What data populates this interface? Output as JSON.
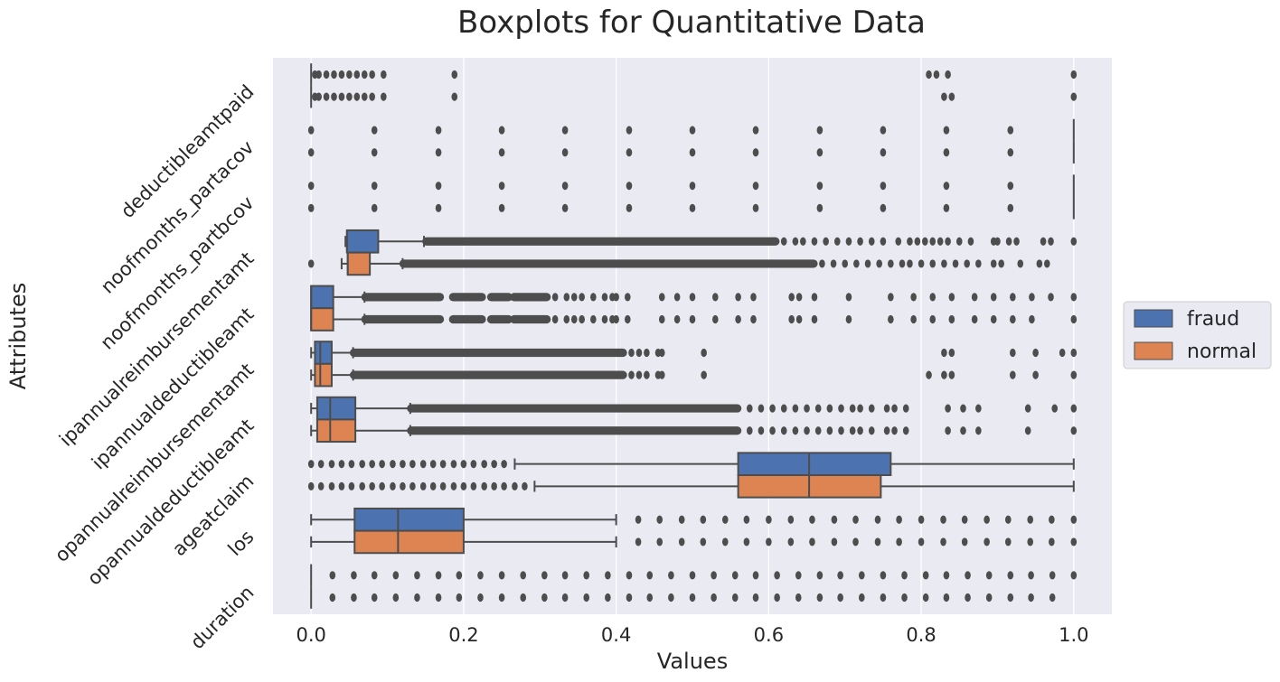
{
  "chart_data": {
    "type": "boxplot",
    "title": "Boxplots for Quantitative Data",
    "xlabel": "Values",
    "ylabel": "Attributes",
    "xlim": [
      -0.05,
      1.05
    ],
    "xticks": [
      0.0,
      0.2,
      0.4,
      0.6,
      0.8,
      1.0
    ],
    "xtick_labels": [
      "0.0",
      "0.2",
      "0.4",
      "0.6",
      "0.8",
      "1.0"
    ],
    "grid": true,
    "legend": {
      "placement": "right",
      "entries": [
        "fraud",
        "normal"
      ]
    },
    "colors": {
      "fraud": "#4c72b0",
      "normal": "#dd8452",
      "background": "#eaeaf2",
      "line": "#4d4d4d",
      "grid": "#ffffff"
    },
    "categories": [
      "deductibleamtpaid",
      "noofmonths_partacov",
      "noofmonths_partbcov",
      "ipannualreimbursementamt",
      "ipannualdeductibleamt",
      "opannualreimbursementamt",
      "opannualdeductibleamt",
      "ageatclaim",
      "los",
      "duration"
    ],
    "series": [
      {
        "name": "fraud",
        "boxes": [
          {
            "q1": 0.0,
            "median": 0.0,
            "q3": 0.0,
            "wlo": 0.0,
            "whi": 0.0,
            "outliers": [
              0.005,
              0.01,
              0.02,
              0.03,
              0.04,
              0.05,
              0.06,
              0.07,
              0.08,
              0.095,
              0.188,
              0.81,
              0.82,
              0.835,
              1.0
            ]
          },
          {
            "q1": 1.0,
            "median": 1.0,
            "q3": 1.0,
            "wlo": 1.0,
            "whi": 1.0,
            "outliers": [
              0.0,
              0.083,
              0.167,
              0.25,
              0.333,
              0.417,
              0.5,
              0.583,
              0.667,
              0.75,
              0.833,
              0.917
            ]
          },
          {
            "q1": 1.0,
            "median": 1.0,
            "q3": 1.0,
            "wlo": 1.0,
            "whi": 1.0,
            "outliers": [
              0.0,
              0.083,
              0.167,
              0.25,
              0.333,
              0.417,
              0.5,
              0.583,
              0.667,
              0.75,
              0.833,
              0.917
            ]
          },
          {
            "q1": 0.047,
            "median": 0.047,
            "q3": 0.088,
            "wlo": 0.045,
            "whi": 0.148,
            "outliers": [
              0.96,
              0.97,
              1.0
            ],
            "dense": [
              [
                0.15,
                0.61
              ]
            ],
            "sparse": [
              0.62,
              0.635,
              0.645,
              0.66,
              0.675,
              0.69,
              0.705,
              0.72,
              0.735,
              0.75,
              0.77,
              0.785,
              0.795,
              0.805,
              0.815,
              0.825,
              0.835,
              0.85,
              0.865,
              0.895,
              0.9,
              0.915,
              0.925
            ]
          },
          {
            "q1": 0.0,
            "median": 0.0,
            "q3": 0.029,
            "wlo": 0.0,
            "whi": 0.07,
            "outliers": [
              0.58,
              0.63,
              0.64,
              0.66,
              0.705,
              0.76,
              0.79,
              0.815,
              0.84,
              0.87,
              0.895,
              0.92,
              0.945,
              0.97,
              1.0
            ],
            "dense": [
              [
                0.07,
                0.17
              ],
              [
                0.185,
                0.225
              ],
              [
                0.235,
                0.26
              ],
              [
                0.265,
                0.31
              ]
            ],
            "sparse": [
              0.32,
              0.335,
              0.345,
              0.355,
              0.37,
              0.385,
              0.395,
              0.4,
              0.415,
              0.46,
              0.48,
              0.5,
              0.53,
              0.56
            ]
          },
          {
            "q1": 0.005,
            "median": 0.012,
            "q3": 0.027,
            "wlo": 0.0,
            "whi": 0.055,
            "outliers": [
              0.515,
              0.83,
              0.84,
              0.92,
              0.95,
              0.985,
              1.0
            ],
            "dense": [
              [
                0.055,
                0.41
              ]
            ],
            "sparse": [
              0.42,
              0.43,
              0.44,
              0.455,
              0.46
            ]
          },
          {
            "q1": 0.008,
            "median": 0.025,
            "q3": 0.058,
            "wlo": 0.0,
            "whi": 0.13,
            "outliers": [
              0.835,
              0.855,
              0.875,
              0.94,
              0.975,
              1.0
            ],
            "dense": [
              [
                0.13,
                0.56
              ]
            ],
            "sparse": [
              0.575,
              0.59,
              0.605,
              0.62,
              0.635,
              0.65,
              0.665,
              0.68,
              0.695,
              0.71,
              0.72,
              0.735,
              0.755,
              0.765,
              0.78
            ]
          },
          {
            "q1": 0.56,
            "median": 0.653,
            "q3": 0.76,
            "wlo": 0.267,
            "whi": 1.0,
            "outliers": [
              0.0,
              0.013,
              0.027,
              0.04,
              0.053,
              0.067,
              0.08,
              0.093,
              0.107,
              0.12,
              0.133,
              0.147,
              0.16,
              0.173,
              0.187,
              0.2,
              0.213,
              0.227,
              0.24,
              0.253
            ]
          },
          {
            "q1": 0.057,
            "median": 0.114,
            "q3": 0.2,
            "wlo": 0.0,
            "whi": 0.4,
            "outliers": [
              0.429,
              0.457,
              0.486,
              0.514,
              0.543,
              0.571,
              0.6,
              0.629,
              0.657,
              0.686,
              0.714,
              0.743,
              0.771,
              0.8,
              0.829,
              0.857,
              0.886,
              0.914,
              0.943,
              0.971,
              1.0
            ]
          },
          {
            "q1": 0.0,
            "median": 0.0,
            "q3": 0.0,
            "wlo": 0.0,
            "whi": 0.0,
            "outliers": [
              0.028,
              0.056,
              0.083,
              0.111,
              0.139,
              0.167,
              0.194,
              0.222,
              0.25,
              0.278,
              0.306,
              0.333,
              0.361,
              0.389,
              0.417,
              0.444,
              0.472,
              0.5,
              0.528,
              0.556,
              0.583,
              0.611,
              0.639,
              0.667,
              0.694,
              0.722,
              0.75,
              0.778,
              0.806,
              0.833,
              0.861,
              0.889,
              0.917,
              0.944,
              0.972,
              1.0
            ]
          }
        ]
      },
      {
        "name": "normal",
        "boxes": [
          {
            "q1": 0.0,
            "median": 0.0,
            "q3": 0.0,
            "wlo": 0.0,
            "whi": 0.0,
            "outliers": [
              0.005,
              0.01,
              0.02,
              0.03,
              0.04,
              0.05,
              0.06,
              0.07,
              0.08,
              0.095,
              0.188,
              0.83,
              0.84,
              1.0
            ]
          },
          {
            "q1": 1.0,
            "median": 1.0,
            "q3": 1.0,
            "wlo": 1.0,
            "whi": 1.0,
            "outliers": [
              0.0,
              0.083,
              0.167,
              0.25,
              0.333,
              0.417,
              0.5,
              0.583,
              0.667,
              0.75,
              0.833,
              0.917
            ]
          },
          {
            "q1": 1.0,
            "median": 1.0,
            "q3": 1.0,
            "wlo": 1.0,
            "whi": 1.0,
            "outliers": [
              0.0,
              0.083,
              0.167,
              0.25,
              0.333,
              0.417,
              0.5,
              0.583,
              0.667,
              0.75,
              0.833,
              0.917
            ]
          },
          {
            "q1": 0.048,
            "median": 0.048,
            "q3": 0.077,
            "wlo": 0.04,
            "whi": 0.12,
            "outliers": [
              0.0,
              0.955,
              0.965
            ],
            "dense": [
              [
                0.12,
                0.66
              ]
            ],
            "sparse": [
              0.67,
              0.685,
              0.7,
              0.715,
              0.73,
              0.745,
              0.76,
              0.775,
              0.785,
              0.8,
              0.815,
              0.83,
              0.845,
              0.86,
              0.875,
              0.895,
              0.905,
              0.93
            ]
          },
          {
            "q1": 0.0,
            "median": 0.0,
            "q3": 0.029,
            "wlo": 0.0,
            "whi": 0.07,
            "outliers": [
              0.58,
              0.63,
              0.64,
              0.66,
              0.705,
              0.76,
              0.79,
              0.815,
              0.84,
              0.87,
              0.895,
              0.92,
              0.945,
              1.0
            ],
            "dense": [
              [
                0.07,
                0.17
              ],
              [
                0.185,
                0.225
              ],
              [
                0.235,
                0.26
              ],
              [
                0.265,
                0.31
              ]
            ],
            "sparse": [
              0.32,
              0.335,
              0.345,
              0.355,
              0.37,
              0.385,
              0.395,
              0.4,
              0.415,
              0.46,
              0.48,
              0.5,
              0.53,
              0.56
            ]
          },
          {
            "q1": 0.005,
            "median": 0.012,
            "q3": 0.027,
            "wlo": 0.0,
            "whi": 0.055,
            "outliers": [
              0.515,
              0.81,
              0.83,
              0.84,
              0.92,
              0.95,
              1.0
            ],
            "dense": [
              [
                0.055,
                0.41
              ]
            ],
            "sparse": [
              0.42,
              0.43,
              0.44,
              0.455,
              0.46
            ]
          },
          {
            "q1": 0.008,
            "median": 0.025,
            "q3": 0.058,
            "wlo": 0.0,
            "whi": 0.13,
            "outliers": [
              0.835,
              0.855,
              0.875,
              0.94,
              1.0
            ],
            "dense": [
              [
                0.13,
                0.56
              ]
            ],
            "sparse": [
              0.575,
              0.59,
              0.605,
              0.62,
              0.635,
              0.65,
              0.665,
              0.68,
              0.695,
              0.71,
              0.72,
              0.735,
              0.755,
              0.765,
              0.78
            ]
          },
          {
            "q1": 0.56,
            "median": 0.653,
            "q3": 0.747,
            "wlo": 0.293,
            "whi": 1.0,
            "outliers": [
              0.0,
              0.013,
              0.027,
              0.04,
              0.053,
              0.067,
              0.08,
              0.093,
              0.107,
              0.12,
              0.133,
              0.147,
              0.16,
              0.173,
              0.187,
              0.2,
              0.213,
              0.227,
              0.24,
              0.253,
              0.267,
              0.28
            ]
          },
          {
            "q1": 0.057,
            "median": 0.114,
            "q3": 0.2,
            "wlo": 0.0,
            "whi": 0.4,
            "outliers": [
              0.429,
              0.457,
              0.486,
              0.514,
              0.543,
              0.571,
              0.6,
              0.629,
              0.657,
              0.686,
              0.714,
              0.743,
              0.771,
              0.8,
              0.829,
              0.857,
              0.886,
              0.914,
              0.943,
              0.971,
              1.0
            ]
          },
          {
            "q1": 0.0,
            "median": 0.0,
            "q3": 0.0,
            "wlo": 0.0,
            "whi": 0.0,
            "outliers": [
              0.028,
              0.056,
              0.083,
              0.111,
              0.139,
              0.167,
              0.194,
              0.222,
              0.25,
              0.278,
              0.306,
              0.333,
              0.361,
              0.389,
              0.417,
              0.444,
              0.472,
              0.5,
              0.528,
              0.556,
              0.583,
              0.611,
              0.639,
              0.667,
              0.694,
              0.722,
              0.75,
              0.778,
              0.806,
              0.833,
              0.861,
              0.889,
              0.917,
              0.944,
              0.972
            ]
          }
        ]
      }
    ]
  }
}
